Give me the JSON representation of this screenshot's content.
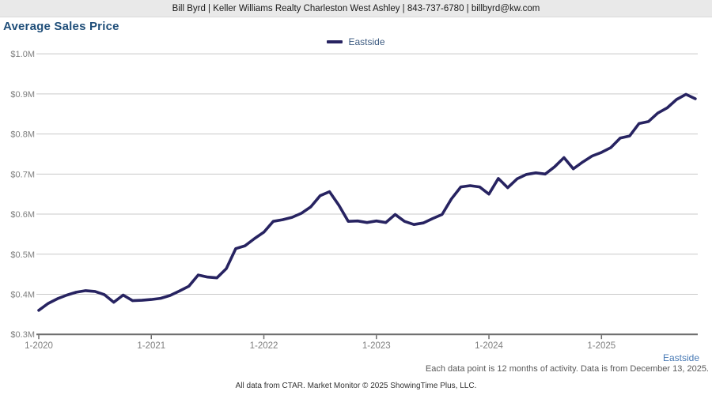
{
  "header": {
    "text": "Bill Byrd | Keller Williams Realty Charleston West Ashley | 843-737-6780 | billbyrd@kw.com"
  },
  "title": "Average Sales Price",
  "legend": {
    "label": "Eastside"
  },
  "bottom_right_label": "Eastside",
  "footnote": "Each data point is 12 months of activity. Data is from December 13, 2025.",
  "footer": "All data from CTAR. Market Monitor © 2025 ShowingTime Plus, LLC.",
  "colors": {
    "header_bg": "#e9e9e9",
    "header_text": "#1a1a1a",
    "title": "#1f4e79",
    "line": "#272361",
    "legend_text": "#3c5a80",
    "bottom_right_label_text": "#4779b4",
    "gridline": "#c9c9c9",
    "axis_line": "#6e6e6e",
    "axis_text": "#7f7f7f",
    "footnote_text": "#595959",
    "footer_text": "#333333"
  },
  "chart_data": {
    "type": "line",
    "title": "Average Sales Price",
    "xlabel": "",
    "ylabel": "",
    "grid": "horizontal",
    "legend_position": "top-center",
    "ylim_millions": [
      0.3,
      1.0
    ],
    "y_tick_step_millions": 0.1,
    "y_tick_labels": [
      "$0.3M",
      "$0.4M",
      "$0.5M",
      "$0.6M",
      "$0.7M",
      "$0.8M",
      "$0.9M",
      "$1.0M"
    ],
    "x_tick_labels": [
      "1-2020",
      "1-2021",
      "1-2022",
      "1-2023",
      "1-2024",
      "1-2025"
    ],
    "x_tick_month_indices": [
      0,
      12,
      24,
      36,
      48,
      60
    ],
    "x_start_month": "1-2020",
    "x_end_month": "11-2025",
    "points_per_month": 1,
    "series": [
      {
        "name": "Eastside",
        "color": "#272361",
        "values_millions": [
          0.36,
          0.377,
          0.389,
          0.398,
          0.405,
          0.409,
          0.407,
          0.399,
          0.38,
          0.398,
          0.384,
          0.385,
          0.387,
          0.39,
          0.397,
          0.408,
          0.42,
          0.448,
          0.443,
          0.441,
          0.464,
          0.514,
          0.521,
          0.539,
          0.555,
          0.582,
          0.586,
          0.592,
          0.602,
          0.618,
          0.646,
          0.656,
          0.622,
          0.582,
          0.583,
          0.579,
          0.583,
          0.579,
          0.599,
          0.582,
          0.574,
          0.578,
          0.589,
          0.599,
          0.638,
          0.668,
          0.671,
          0.668,
          0.65,
          0.689,
          0.666,
          0.688,
          0.699,
          0.703,
          0.7,
          0.718,
          0.741,
          0.713,
          0.73,
          0.745,
          0.754,
          0.766,
          0.79,
          0.795,
          0.826,
          0.831,
          0.852,
          0.865,
          0.886,
          0.899,
          0.888
        ]
      }
    ]
  }
}
